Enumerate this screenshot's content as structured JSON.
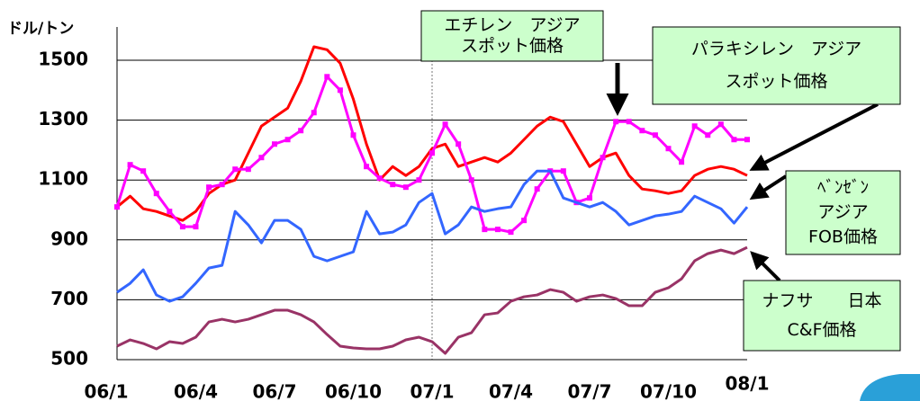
{
  "chart_data": {
    "type": "line",
    "ylabel": "ドル/トン",
    "categories": [
      "06/1",
      null,
      null,
      null,
      null,
      null,
      "06/4",
      null,
      null,
      null,
      null,
      null,
      "06/7",
      null,
      null,
      null,
      null,
      null,
      "06/10",
      null,
      null,
      null,
      null,
      null,
      "07/1",
      null,
      null,
      null,
      null,
      null,
      "07/4",
      null,
      null,
      null,
      null,
      null,
      "07/7",
      null,
      null,
      null,
      null,
      null,
      "07/10",
      null,
      null,
      null,
      null,
      null,
      "08/1"
    ],
    "series": [
      {
        "color": "#ff0000",
        "values": [
          1010,
          1046,
          1004,
          995,
          980,
          965,
          995,
          1055,
          1085,
          1100,
          1190,
          1280,
          1310,
          1340,
          1430,
          1545,
          1535,
          1490,
          1370,
          1220,
          1100,
          1145,
          1115,
          1145,
          1205,
          1220,
          1145,
          1160,
          1175,
          1160,
          1190,
          1235,
          1280,
          1310,
          1295,
          1220,
          1145,
          1175,
          1190,
          1115,
          1070,
          1064,
          1055,
          1064,
          1115,
          1136,
          1145,
          1136,
          1115
        ]
      },
      {
        "color": "#ff00ff",
        "markers": true,
        "values": [
          1010,
          1151,
          1130,
          1055,
          995,
          944,
          944,
          1076,
          1085,
          1136,
          1136,
          1175,
          1220,
          1235,
          1265,
          1325,
          1445,
          1400,
          1250,
          1145,
          1106,
          1085,
          1076,
          1100,
          1190,
          1286,
          1220,
          1100,
          935,
          935,
          926,
          965,
          1070,
          1130,
          1130,
          1025,
          1040,
          1175,
          1295,
          1295,
          1265,
          1250,
          1205,
          1160,
          1280,
          1250,
          1286,
          1235,
          1235
        ]
      },
      {
        "color": "#3366ff",
        "values": [
          725,
          755,
          800,
          716,
          695,
          710,
          755,
          806,
          815,
          995,
          950,
          890,
          965,
          965,
          935,
          845,
          830,
          845,
          860,
          995,
          920,
          926,
          950,
          1025,
          1055,
          920,
          950,
          1010,
          995,
          1004,
          1010,
          1085,
          1130,
          1130,
          1040,
          1025,
          1010,
          1025,
          995,
          950,
          965,
          980,
          986,
          995,
          1046,
          1025,
          1004,
          956,
          1010
        ]
      },
      {
        "color": "#993366",
        "values": [
          545,
          566,
          554,
          536,
          560,
          554,
          575,
          626,
          635,
          626,
          635,
          650,
          665,
          665,
          650,
          626,
          584,
          545,
          539,
          536,
          536,
          545,
          566,
          575,
          560,
          521,
          575,
          590,
          650,
          656,
          695,
          710,
          716,
          734,
          725,
          695,
          710,
          716,
          704,
          680,
          680,
          725,
          740,
          770,
          830,
          854,
          866,
          854,
          875
        ]
      }
    ],
    "ylim": [
      500,
      1500
    ],
    "yticks": [
      500,
      700,
      900,
      1100,
      1300,
      1500
    ],
    "grid": true,
    "annotations": [
      {
        "lines": [
          "エチレン　アジア",
          "スポット価格"
        ]
      },
      {
        "lines": [
          "パラキシレン　アジア",
          "スポット価格"
        ]
      },
      {
        "lines": [
          "ﾍﾞﾝｾﾞﾝ",
          "アジア",
          "FOB価格"
        ]
      },
      {
        "lines": [
          "ナフサ　　日本",
          "C&F価格"
        ]
      }
    ]
  }
}
